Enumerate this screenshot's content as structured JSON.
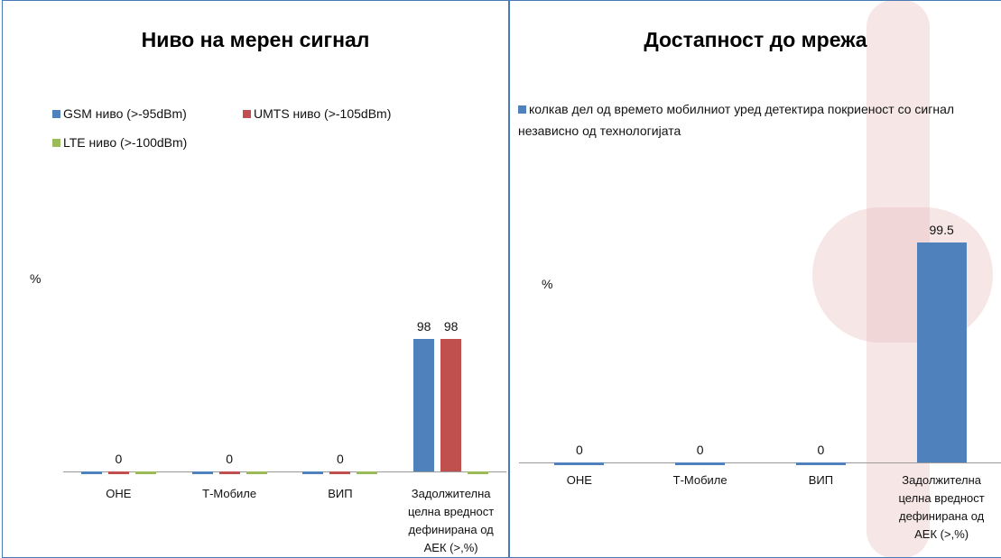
{
  "chart_data": [
    {
      "type": "bar",
      "title": "Ниво на мерен сигнал",
      "y_label": "%",
      "categories": [
        "ОНЕ",
        "Т-Мобиле",
        "ВИП",
        "Задолжителна целна вредност дефинирана од АЕК (>,%)"
      ],
      "series": [
        {
          "name": "GSM ниво (>-95dBm)",
          "color": "#4f81bd",
          "values": [
            0,
            0,
            0,
            98
          ],
          "value_labels": [
            null,
            null,
            null,
            "98"
          ]
        },
        {
          "name": "UMTS ниво (>-105dBm)",
          "color": "#c0504d",
          "values": [
            0,
            0,
            0,
            98
          ],
          "value_labels": [
            "0",
            "0",
            "0",
            "98"
          ]
        },
        {
          "name": "LTE ниво (>-100dBm)",
          "color": "#9bbb59",
          "values": [
            0,
            0,
            0,
            0
          ],
          "value_labels": [
            null,
            null,
            null,
            null
          ]
        }
      ],
      "ylim": [
        0,
        100
      ]
    },
    {
      "type": "bar",
      "title": "Достапност до мрежа",
      "y_label": "%",
      "categories": [
        "ОНЕ",
        "Т-Мобиле",
        "ВИП",
        "Задолжителна целна вредност дефинирана од АЕК (>,%)"
      ],
      "series": [
        {
          "name": "колкав дел од времето мобилниот уред детектира покриеност со сигнал независно од технологијата",
          "color": "#4f81bd",
          "values": [
            0,
            0,
            0,
            99.5
          ]
        }
      ],
      "ylim": [
        0,
        100
      ]
    }
  ]
}
